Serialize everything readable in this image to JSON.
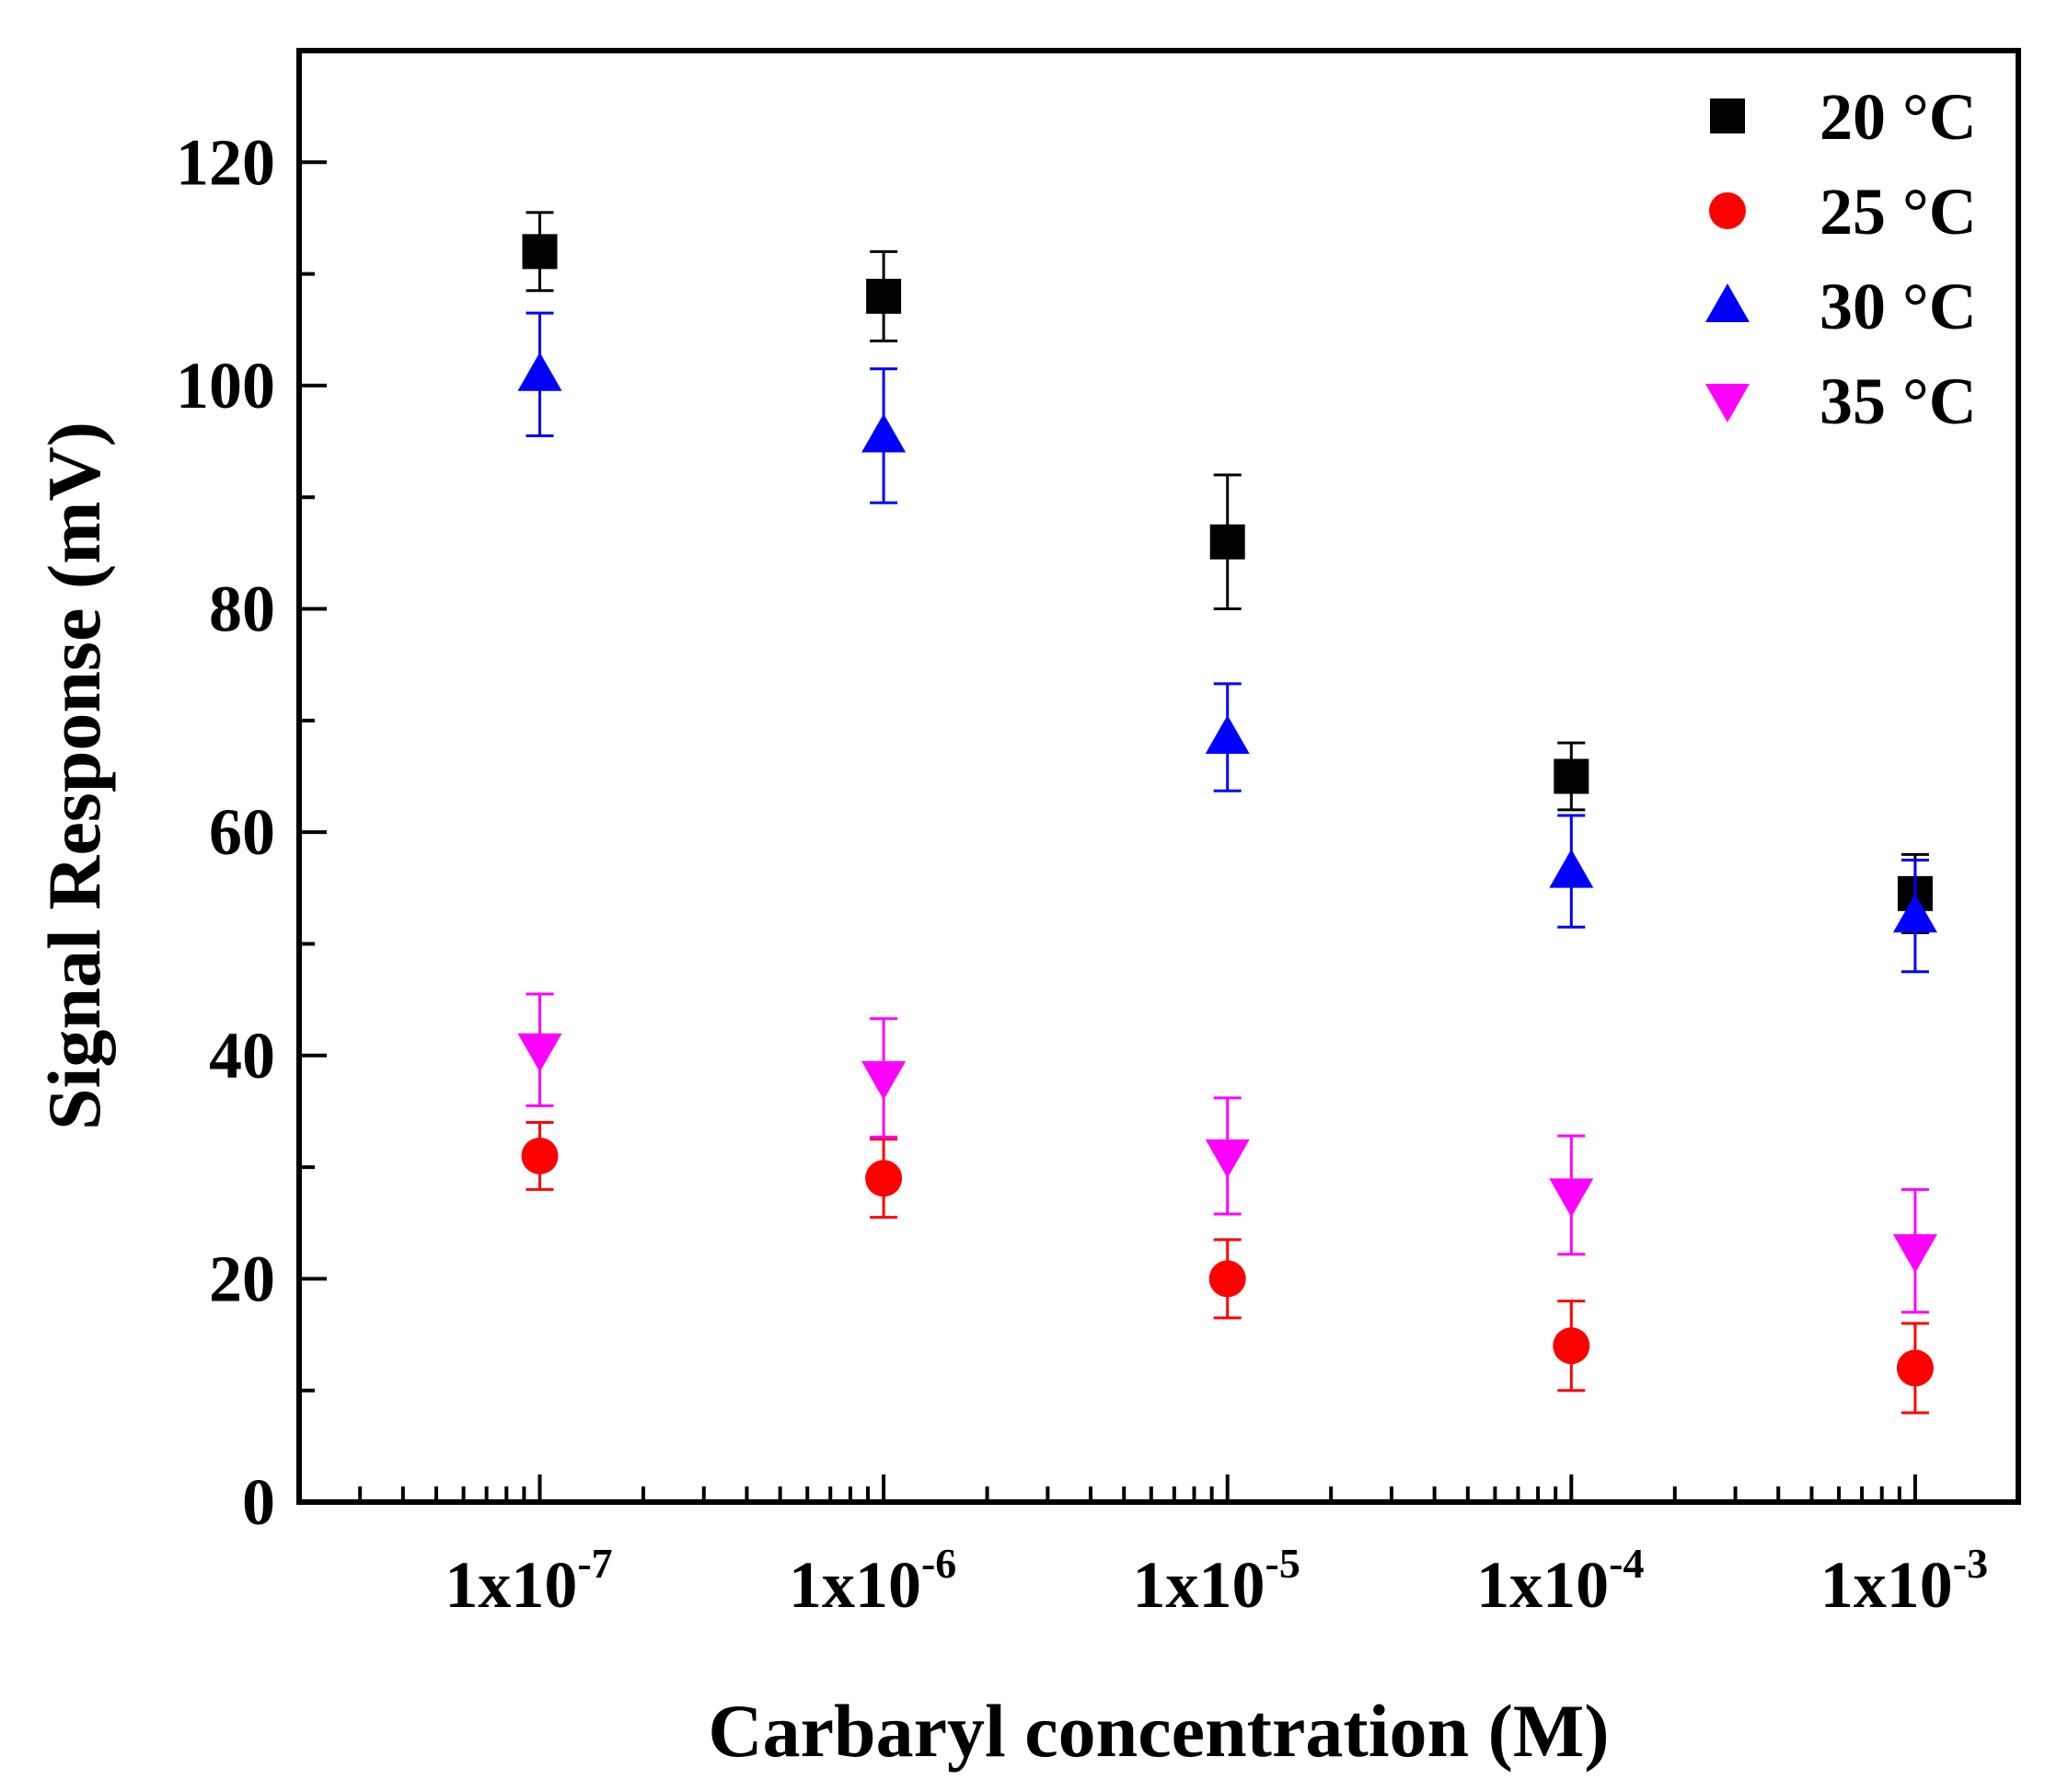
{
  "chart_data": {
    "type": "scatter",
    "title": "",
    "xlabel": "Carbaryl concentration (M)",
    "ylabel": "Signal Response (mV)",
    "x_scale": "log",
    "x": [
      1e-07,
      1e-06,
      1e-05,
      0.0001,
      0.001
    ],
    "x_tick_labels": [
      {
        "base": "1x10",
        "exp": "-7"
      },
      {
        "base": "1x10",
        "exp": "-6"
      },
      {
        "base": "1x10",
        "exp": "-5"
      },
      {
        "base": "1x10",
        "exp": "-4"
      },
      {
        "base": "1x10",
        "exp": "-3"
      }
    ],
    "xlim_log10": [
      -7.7,
      -2.7
    ],
    "ylim": [
      0,
      130
    ],
    "y_ticks": [
      0,
      20,
      40,
      60,
      80,
      100,
      120
    ],
    "y_tick_labels": [
      "0",
      "20",
      "40",
      "60",
      "80",
      "100",
      "120"
    ],
    "grid": false,
    "legend_position": "top-right",
    "series": [
      {
        "name": "20 °C",
        "marker": "square",
        "color": "#000000",
        "values": [
          112,
          108,
          86,
          65,
          54.5
        ],
        "errors": [
          3.5,
          4,
          6,
          3,
          3.5
        ]
      },
      {
        "name": "25 °C",
        "marker": "circle",
        "color": "#ff0000",
        "values": [
          31,
          29,
          20,
          14,
          12
        ],
        "errors": [
          3,
          3.5,
          3.5,
          4,
          4
        ]
      },
      {
        "name": "30 °C",
        "marker": "triangle-up",
        "color": "#0000ff",
        "values": [
          101,
          95.5,
          68.5,
          56.5,
          52.5
        ],
        "errors": [
          5.5,
          6,
          4.8,
          5,
          5
        ]
      },
      {
        "name": "35 °C",
        "marker": "triangle-down",
        "color": "#ff00ff",
        "values": [
          40.5,
          38,
          31,
          27.5,
          22.5
        ],
        "errors": [
          5,
          5.3,
          5.2,
          5.3,
          5.5
        ]
      }
    ]
  }
}
